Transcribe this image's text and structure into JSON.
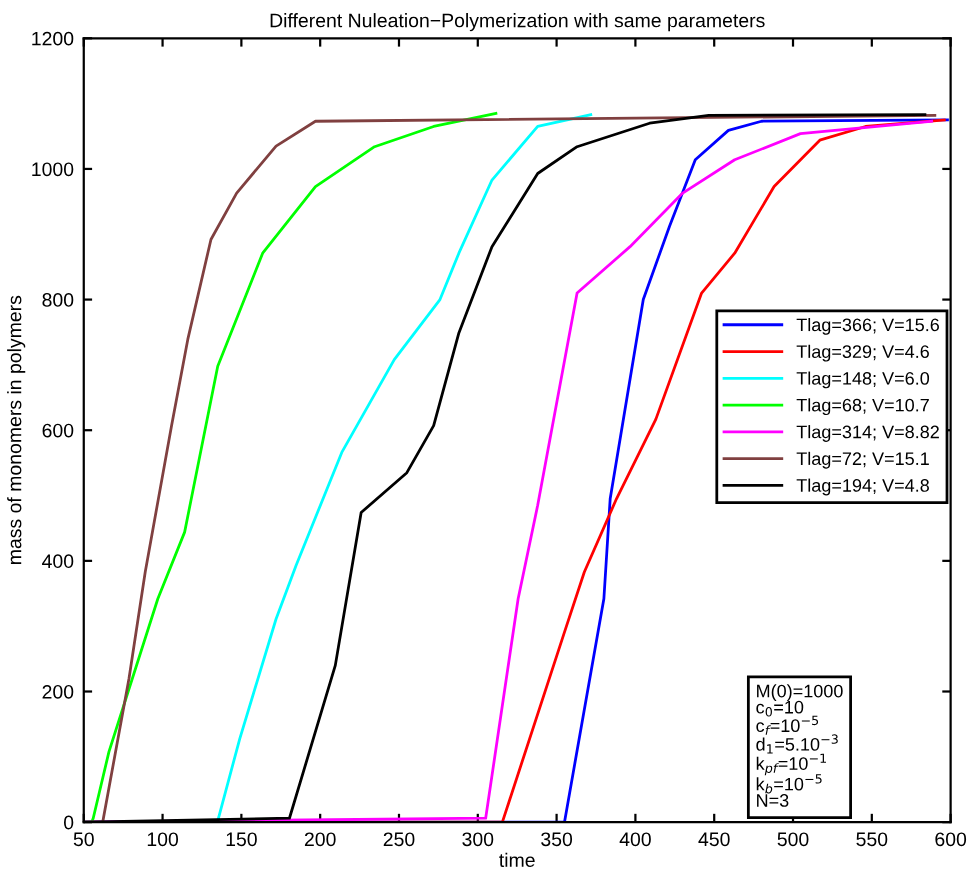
{
  "chart_data": {
    "type": "line",
    "title": "Different Nuleation−Polymerization with same parameters",
    "xlabel": "time",
    "ylabel": "mass of monomers in polymers",
    "xlim": [
      50,
      600
    ],
    "xticks": [
      50,
      100,
      150,
      200,
      250,
      300,
      350,
      400,
      450,
      500,
      550,
      600
    ],
    "ylim": [
      0,
      1200
    ],
    "yticks": [
      0,
      200,
      400,
      600,
      800,
      1000,
      1200
    ],
    "grid": false,
    "legend": "right",
    "annotations": [
      "M(0)=1000\nc$_{0}$=10\nc$_{f}$=10$^{−5}$\nd$_{1}$=5.10$^{−3}$\nk$_{pf}$=10$^{−1}$\nk$_{b}$=10$^{−5}$\nN=3"
    ],
    "series": [
      {
        "name": "Tlag=366; V=15.6",
        "color": "#0000ff",
        "x": [
          50,
          355,
          380,
          384,
          405,
          421.6,
          438,
          459,
          480,
          598
        ],
        "values": [
          0,
          0,
          342,
          495,
          800,
          912,
          1014,
          1059,
          1073,
          1075
        ]
      },
      {
        "name": "Tlag=329; V=4.6",
        "color": "#ff0000",
        "x": [
          50,
          315.6,
          355,
          367.6,
          388,
          413,
          442,
          463,
          488,
          517,
          546,
          596
        ],
        "values": [
          0,
          0,
          291,
          383,
          495,
          617,
          810,
          871,
          973,
          1044,
          1065,
          1075
        ]
      },
      {
        "name": "Tlag=148; V=6.0",
        "color": "#00ffff",
        "x": [
          50,
          134.8,
          149,
          172,
          184.7,
          213.7,
          247,
          276,
          288,
          309,
          338,
          371.7
        ],
        "values": [
          0,
          0,
          128,
          311,
          393,
          566,
          708,
          800,
          871,
          983,
          1065,
          1083
        ]
      },
      {
        "name": "Tlag=68; V=10.7",
        "color": "#00ff00",
        "x": [
          50,
          55,
          56,
          66,
          97,
          114,
          135,
          163.5,
          197,
          234.5,
          272,
          311.5
        ],
        "values": [
          0,
          0,
          6,
          108,
          342,
          444,
          698,
          871,
          973,
          1034,
          1065,
          1085
        ]
      },
      {
        "name": "Tlag=314; V=8.82",
        "color": "#ff00ff",
        "x": [
          50,
          305,
          325.6,
          338,
          363,
          396.6,
          430,
          463,
          504.7,
          588
        ],
        "values": [
          0,
          6,
          342,
          485,
          810,
          881,
          963,
          1014,
          1054,
          1073
        ]
      },
      {
        "name": "Tlag=72; V=15.1",
        "color": "#804040",
        "x": [
          50,
          62,
          78.7,
          89,
          105.7,
          116,
          130.7,
          147,
          172,
          197,
          590
        ],
        "values": [
          0,
          0,
          220,
          383,
          607,
          739,
          892,
          963,
          1035,
          1073,
          1082
        ]
      },
      {
        "name": "Tlag=194; V=4.8",
        "color": "#000000",
        "x": [
          50,
          180.5,
          209.6,
          226,
          255,
          272,
          288,
          309,
          338,
          363,
          409,
          446.5,
          583.7
        ],
        "values": [
          0,
          6,
          240,
          474,
          535,
          607,
          749,
          881,
          993,
          1034,
          1070,
          1082,
          1083
        ]
      }
    ]
  }
}
